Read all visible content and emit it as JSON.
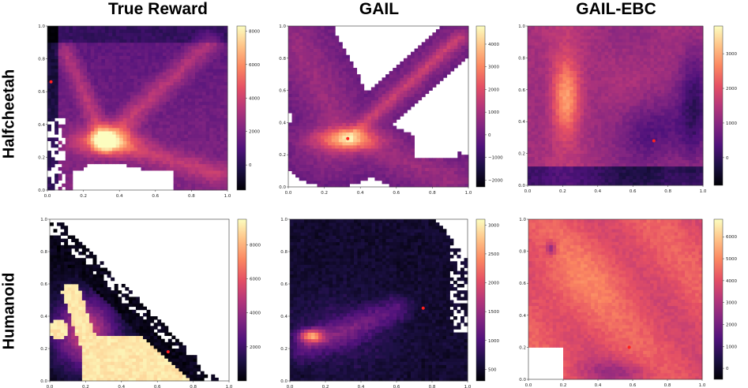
{
  "columns": [
    "True Reward",
    "GAIL",
    "GAIL-EBC"
  ],
  "rows": [
    "Halfcheetah",
    "Humanoid"
  ],
  "chart_data": [
    {
      "type": "heatmap",
      "row": "Halfcheetah",
      "column": "True Reward",
      "xlim": [
        0,
        1
      ],
      "ylim": [
        0,
        1
      ],
      "xticks": [
        "0.0",
        "0.2",
        "0.4",
        "0.6",
        "0.8",
        "1.0"
      ],
      "yticks": [
        "0.0",
        "0.2",
        "0.4",
        "0.6",
        "0.8",
        "1.0"
      ],
      "colorbar": {
        "range": [
          -1500,
          8300
        ],
        "ticks": [
          0,
          2000,
          4000,
          6000,
          8000
        ]
      },
      "marker": [
        0.02,
        0.66
      ],
      "hotspot": [
        0.32,
        0.3
      ],
      "colormap": "magma"
    },
    {
      "type": "heatmap",
      "row": "Halfcheetah",
      "column": "GAIL",
      "xlim": [
        0,
        1
      ],
      "ylim": [
        0,
        1
      ],
      "xticks": [
        "0.0",
        "0.2",
        "0.4",
        "0.6",
        "0.8",
        "1.0"
      ],
      "yticks": [
        "0.0",
        "0.2",
        "0.4",
        "0.6",
        "0.8",
        "1.0"
      ],
      "colorbar": {
        "range": [
          -2300,
          4800
        ],
        "ticks": [
          -2000,
          -1000,
          0,
          1000,
          2000,
          3000,
          4000
        ]
      },
      "marker": [
        0.33,
        0.3
      ],
      "hotspot": [
        0.33,
        0.3
      ],
      "colormap": "magma"
    },
    {
      "type": "heatmap",
      "row": "Halfcheetah",
      "column": "GAIL-EBC",
      "xlim": [
        0,
        1
      ],
      "ylim": [
        0,
        1
      ],
      "xticks": [
        "0.0",
        "0.2",
        "0.4",
        "0.6",
        "0.8",
        "1.0"
      ],
      "yticks": [
        "0.0",
        "0.2",
        "0.4",
        "0.6",
        "0.8",
        "1.0"
      ],
      "colorbar": {
        "range": [
          -800,
          3800
        ],
        "ticks": [
          0,
          1000,
          2000,
          3000
        ]
      },
      "marker": [
        0.72,
        0.28
      ],
      "hotspot": [
        0.22,
        0.55
      ],
      "colormap": "magma"
    },
    {
      "type": "heatmap",
      "row": "Humanoid",
      "column": "True Reward",
      "xlim": [
        0,
        1
      ],
      "ylim": [
        0,
        1
      ],
      "xticks": [
        "0.0",
        "0.2",
        "0.4",
        "0.6",
        "0.8",
        "1.0"
      ],
      "yticks": [
        "0.0",
        "0.2",
        "0.4",
        "0.6",
        "0.8",
        "1.0"
      ],
      "colorbar": {
        "range": [
          0,
          9500
        ],
        "ticks": [
          2000,
          4000,
          6000,
          8000
        ]
      },
      "marker": [
        0.66,
        0.18
      ],
      "hotspot": [
        0.45,
        0.15
      ],
      "colormap": "magma"
    },
    {
      "type": "heatmap",
      "row": "Humanoid",
      "column": "GAIL",
      "xlim": [
        0,
        1
      ],
      "ylim": [
        0,
        1
      ],
      "xticks": [
        "0.0",
        "0.2",
        "0.4",
        "0.6",
        "0.8",
        "1.0"
      ],
      "yticks": [
        "0.0",
        "0.2",
        "0.4",
        "0.6",
        "0.8",
        "1.0"
      ],
      "colorbar": {
        "range": [
          300,
          3100
        ],
        "ticks": [
          500,
          1000,
          1500,
          2000,
          2500,
          3000
        ]
      },
      "marker": [
        0.75,
        0.45
      ],
      "hotspot": [
        0.12,
        0.28
      ],
      "colormap": "magma"
    },
    {
      "type": "heatmap",
      "row": "Humanoid",
      "column": "GAIL-EBC",
      "xlim": [
        0,
        1
      ],
      "ylim": [
        0,
        1
      ],
      "xticks": [
        "0.0",
        "0.2",
        "0.4",
        "0.6",
        "0.8",
        "1.0"
      ],
      "yticks": [
        "0.0",
        "0.2",
        "0.4",
        "0.6",
        "0.8",
        "1.0"
      ],
      "colorbar": {
        "range": [
          -500,
          6800
        ],
        "ticks": [
          0,
          1000,
          2000,
          3000,
          4000,
          5000,
          6000
        ]
      },
      "marker": [
        0.58,
        0.2
      ],
      "hotspot": [
        0.2,
        0.4
      ],
      "colormap": "magma"
    }
  ]
}
